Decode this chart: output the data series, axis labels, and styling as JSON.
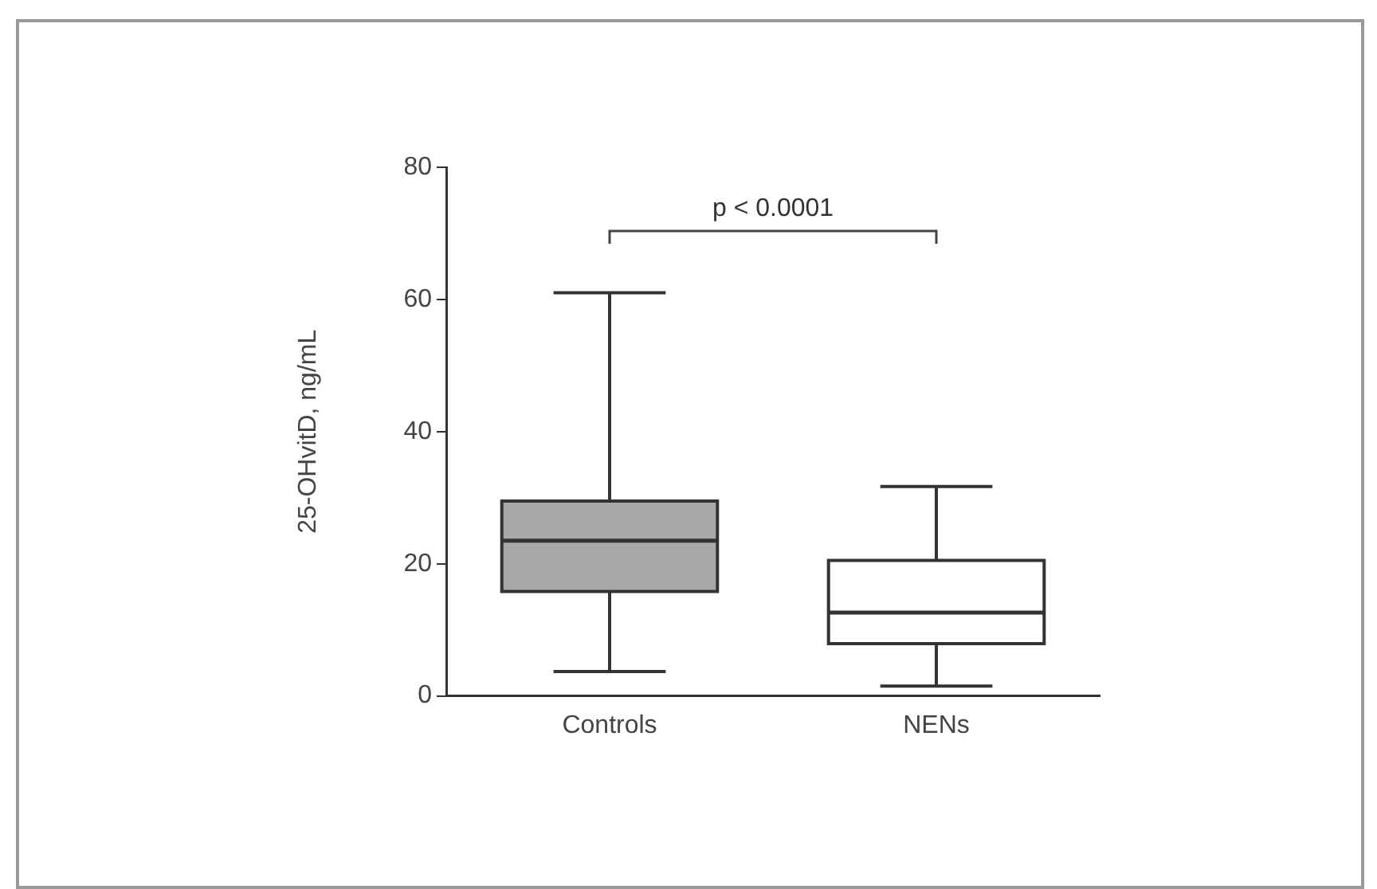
{
  "chart_data": {
    "type": "box",
    "ylabel": "25-OHvitD, ng/mL",
    "categories": [
      "Controls",
      "NENs"
    ],
    "boxes": [
      {
        "low": 3.7,
        "q1": 15.8,
        "median": 23.5,
        "q3": 29.5,
        "high": 61
      },
      {
        "low": 1.5,
        "q1": 7.9,
        "median": 12.6,
        "q3": 20.5,
        "high": 31.7
      }
    ],
    "colors": [
      "#a9a9ab",
      "#ffffff"
    ],
    "ylim": [
      0,
      80
    ],
    "yticks": [
      0,
      20,
      40,
      60,
      80
    ],
    "grid": false,
    "legend": false,
    "annotations": [
      "p < 0.0001"
    ]
  }
}
